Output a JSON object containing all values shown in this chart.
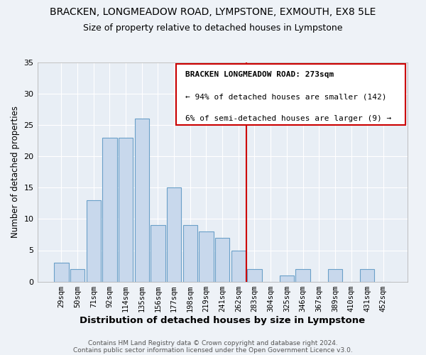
{
  "title": "BRACKEN, LONGMEADOW ROAD, LYMPSTONE, EXMOUTH, EX8 5LE",
  "subtitle": "Size of property relative to detached houses in Lympstone",
  "xlabel": "Distribution of detached houses by size in Lympstone",
  "ylabel": "Number of detached properties",
  "bar_labels": [
    "29sqm",
    "50sqm",
    "71sqm",
    "92sqm",
    "114sqm",
    "135sqm",
    "156sqm",
    "177sqm",
    "198sqm",
    "219sqm",
    "241sqm",
    "262sqm",
    "283sqm",
    "304sqm",
    "325sqm",
    "346sqm",
    "367sqm",
    "389sqm",
    "410sqm",
    "431sqm",
    "452sqm"
  ],
  "bar_values": [
    3,
    2,
    13,
    23,
    23,
    26,
    9,
    15,
    9,
    8,
    7,
    5,
    2,
    0,
    1,
    2,
    0,
    2,
    0,
    2,
    0
  ],
  "bar_color": "#c8d8ec",
  "bar_edge_color": "#6aa0c8",
  "vline_color": "#cc0000",
  "ylim": [
    0,
    35
  ],
  "yticks": [
    0,
    5,
    10,
    15,
    20,
    25,
    30,
    35
  ],
  "annotation_title": "BRACKEN LONGMEADOW ROAD: 273sqm",
  "annotation_line1": "← 94% of detached houses are smaller (142)",
  "annotation_line2": "6% of semi-detached houses are larger (9) →",
  "annotation_box_color": "#ffffff",
  "annotation_border_color": "#cc0000",
  "footer_line1": "Contains HM Land Registry data © Crown copyright and database right 2024.",
  "footer_line2": "Contains public sector information licensed under the Open Government Licence v3.0.",
  "background_color": "#eef2f7",
  "plot_bg_color": "#e8eef5",
  "grid_color": "#ffffff",
  "title_fontsize": 10,
  "subtitle_fontsize": 9,
  "xlabel_fontsize": 9.5,
  "ylabel_fontsize": 8.5,
  "tick_fontsize": 7.5,
  "footer_fontsize": 6.5,
  "annotation_fontsize": 8
}
